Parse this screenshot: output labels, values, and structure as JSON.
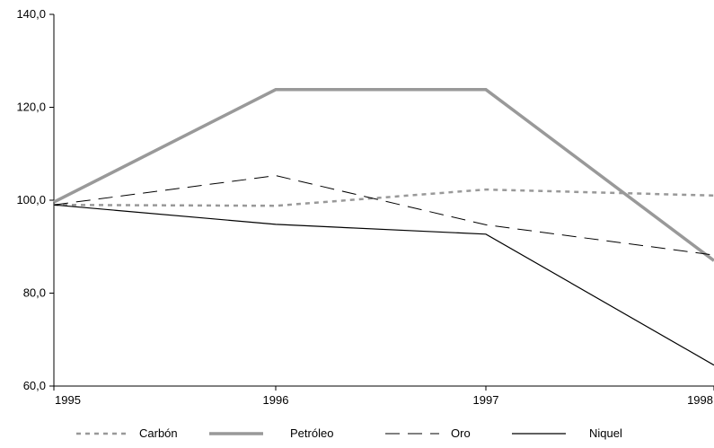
{
  "chart_data": {
    "type": "line",
    "title": "",
    "xlabel": "",
    "ylabel": "",
    "x": [
      "1995",
      "1996",
      "1997",
      "1998"
    ],
    "ylim": [
      60,
      140
    ],
    "y_ticks": [
      "60,0",
      "80,0",
      "100,0",
      "120,0",
      "140,0"
    ],
    "grid": false,
    "legend_position": "bottom",
    "series": [
      {
        "name": "Carbón",
        "values": [
          99.0,
          98.8,
          102.3,
          101.0
        ],
        "color": "#999999",
        "style": "dotted"
      },
      {
        "name": "Petróleo",
        "values": [
          99.6,
          123.8,
          123.8,
          87.0
        ],
        "color": "#999999",
        "style": "thick"
      },
      {
        "name": "Oro",
        "values": [
          99.0,
          105.3,
          94.7,
          88.2
        ],
        "color": "#000000",
        "style": "dashed"
      },
      {
        "name": "Niquel",
        "values": [
          99.0,
          94.8,
          92.7,
          64.5
        ],
        "color": "#000000",
        "style": "solid"
      }
    ]
  }
}
